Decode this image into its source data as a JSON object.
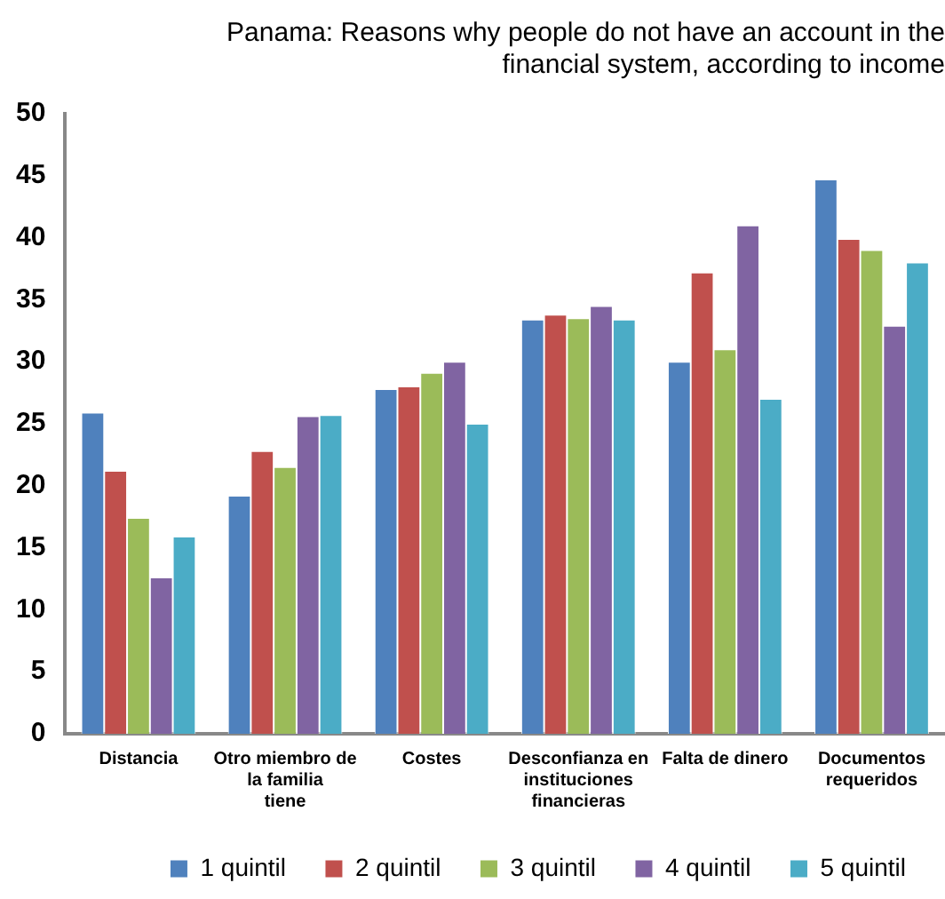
{
  "chart_data": {
    "type": "bar",
    "title": "Panama: Reasons why people do not have an account in the financial system, according to income",
    "categories": [
      "Distancia",
      "Otro miembro de la familia tiene",
      "Costes",
      "Desconfianza en instituciones financieras",
      "Falta de dinero",
      "Documentos requeridos"
    ],
    "series": [
      {
        "name": "1 quintil",
        "color": "#4f81bd",
        "values": [
          25.9,
          19.2,
          27.8,
          33.4,
          30,
          44.7
        ]
      },
      {
        "name": "2 quintil",
        "color": "#c0504d",
        "values": [
          21.2,
          22.8,
          28,
          33.8,
          37.2,
          39.9
        ]
      },
      {
        "name": "3 quintil",
        "color": "#9bbb59",
        "values": [
          17.4,
          21.5,
          29.1,
          33.5,
          31,
          39
        ]
      },
      {
        "name": "4 quintil",
        "color": "#8064a2",
        "values": [
          12.6,
          25.6,
          30,
          34.5,
          41,
          32.9
        ]
      },
      {
        "name": "5 quintil",
        "color": "#4bacc6",
        "values": [
          15.9,
          25.7,
          25,
          33.4,
          27,
          38
        ]
      }
    ],
    "ylim": [
      0,
      50
    ],
    "yticks": [
      0,
      5,
      10,
      15,
      20,
      25,
      30,
      35,
      40,
      45,
      50
    ],
    "grid": false,
    "legend": "bottom"
  }
}
